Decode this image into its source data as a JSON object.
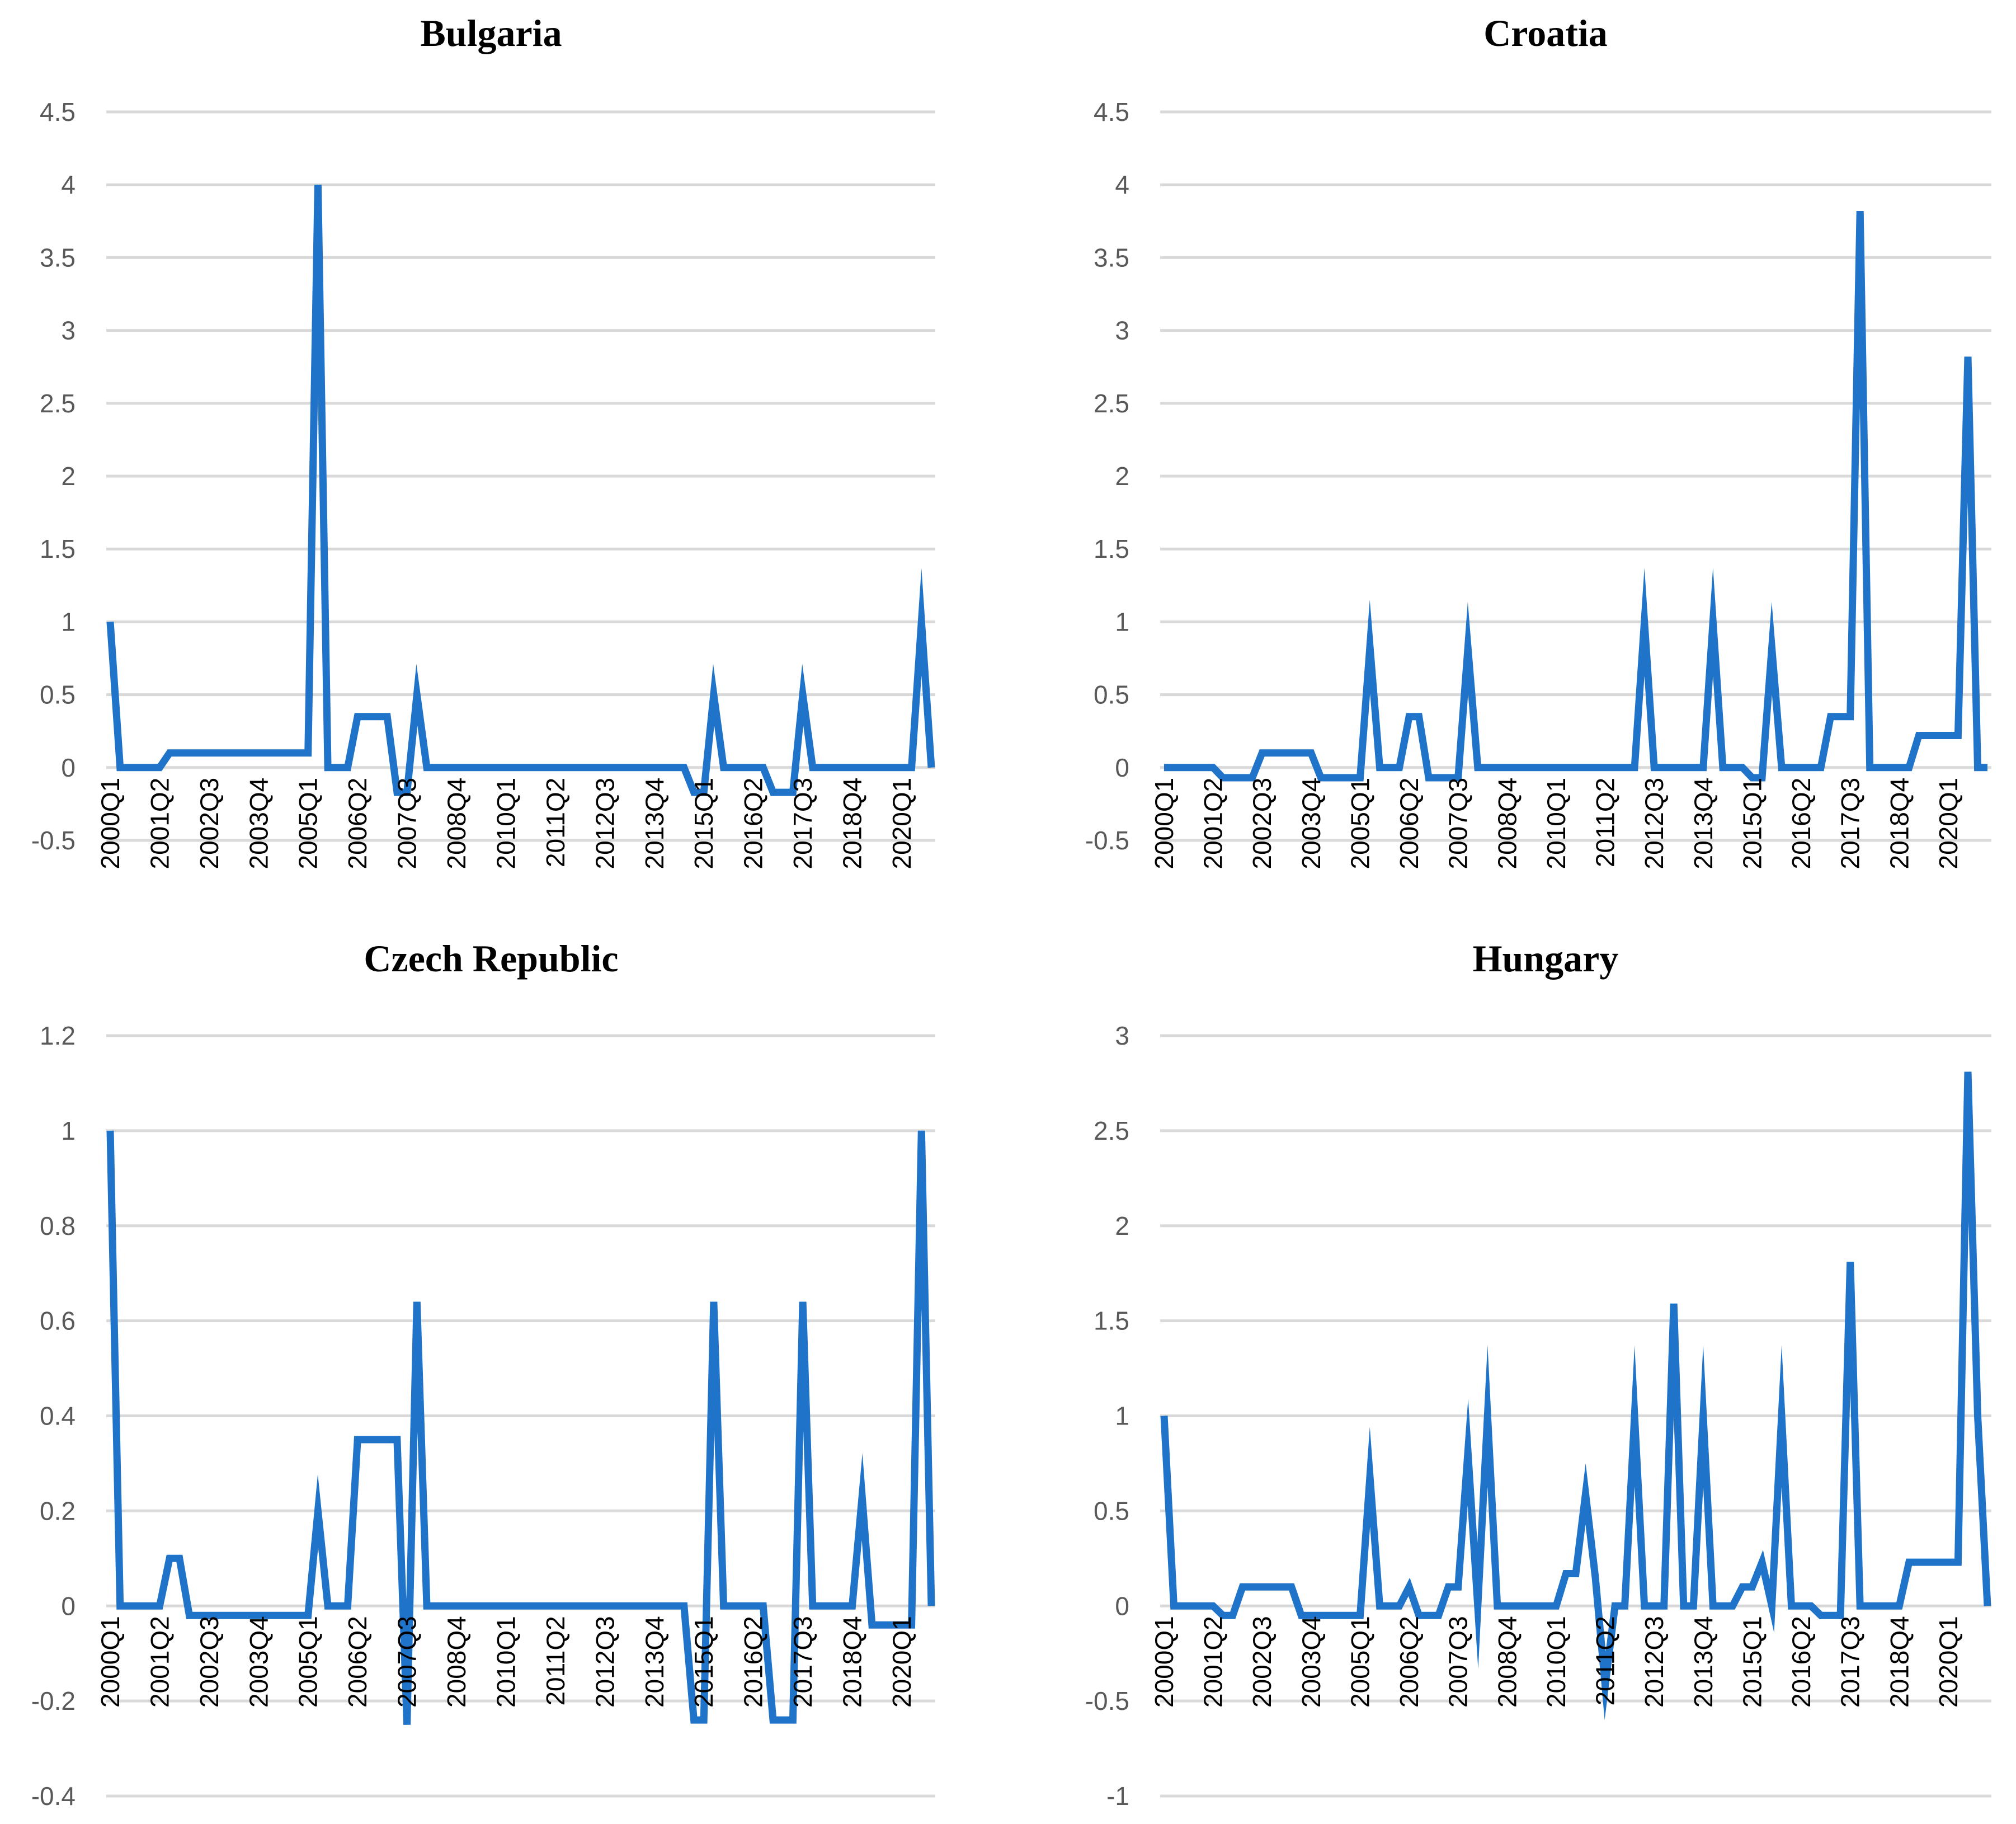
{
  "chart_data": [
    {
      "type": "line",
      "title": "Bulgaria",
      "ylim": [
        -0.5,
        4.5
      ],
      "yticks": [
        "4.5",
        "4",
        "3.5",
        "3",
        "2.5",
        "2",
        "1.5",
        "1",
        "0.5",
        "0",
        "-0.5"
      ],
      "ytick_values": [
        4.5,
        4,
        3.5,
        3,
        2.5,
        2,
        1.5,
        1,
        0.5,
        0,
        -0.5
      ],
      "xticks": [
        "2000Q1",
        "2001Q2",
        "2002Q3",
        "2003Q4",
        "2005Q1",
        "2006Q2",
        "2007Q3",
        "2008Q4",
        "2010Q1",
        "2011Q2",
        "2012Q3",
        "2013Q4",
        "2015Q1",
        "2016Q2",
        "2017Q3",
        "2018Q4",
        "2020Q1"
      ],
      "x_start": "2000Q1",
      "n_quarters": 84,
      "grid": true,
      "series": [
        {
          "name": "Bulgaria",
          "color": "#1f73c8",
          "values": [
            1,
            0,
            0,
            0,
            0,
            0,
            0.1,
            0.1,
            0.1,
            0.1,
            0.1,
            0.1,
            0.1,
            0.1,
            0.1,
            0.1,
            0.1,
            0.1,
            0.1,
            0.1,
            0.1,
            4,
            0,
            0,
            0,
            0.35,
            0.35,
            0.35,
            0.35,
            -0.17,
            -0.17,
            0.5,
            0,
            0,
            0,
            0,
            0,
            0,
            0,
            0,
            0,
            0,
            0,
            0,
            0,
            0,
            0,
            0,
            0,
            0,
            0,
            0,
            0,
            0,
            0,
            0,
            0,
            0,
            0,
            -0.17,
            -0.17,
            0.5,
            0,
            0,
            0,
            0,
            0,
            -0.17,
            -0.17,
            -0.17,
            0.5,
            0,
            0,
            0,
            0,
            0,
            0,
            0,
            0,
            0,
            0,
            0,
            1,
            0
          ]
        }
      ]
    },
    {
      "type": "line",
      "title": "Croatia",
      "ylim": [
        -0.5,
        4.5
      ],
      "yticks": [
        "4.5",
        "4",
        "3.5",
        "3",
        "2.5",
        "2",
        "1.5",
        "1",
        "0.5",
        "0",
        "-0.5"
      ],
      "ytick_values": [
        4.5,
        4,
        3.5,
        3,
        2.5,
        2,
        1.5,
        1,
        0.5,
        0,
        -0.5
      ],
      "xticks": [
        "2000Q1",
        "2001Q2",
        "2002Q3",
        "2003Q4",
        "2005Q1",
        "2006Q2",
        "2007Q3",
        "2008Q4",
        "2010Q1",
        "2011Q2",
        "2012Q3",
        "2013Q4",
        "2015Q1",
        "2016Q2",
        "2017Q3",
        "2018Q4",
        "2020Q1"
      ],
      "x_start": "2000Q1",
      "n_quarters": 85,
      "grid": true,
      "series": [
        {
          "name": "Croatia",
          "color": "#1f73c8",
          "values": [
            0,
            0,
            0,
            0,
            0,
            0,
            -0.07,
            -0.07,
            -0.07,
            -0.07,
            0.1,
            0.1,
            0.1,
            0.1,
            0.1,
            0.1,
            -0.07,
            -0.07,
            -0.07,
            -0.07,
            -0.07,
            0.83,
            0,
            0,
            0,
            0.35,
            0.35,
            -0.07,
            -0.07,
            -0.07,
            -0.07,
            0.82,
            0,
            0,
            0,
            0,
            0,
            0,
            0,
            0,
            0,
            0,
            0,
            0,
            0,
            0,
            0,
            0,
            0,
            1,
            0,
            0,
            0,
            0,
            0,
            0,
            1,
            0,
            0,
            0,
            -0.07,
            -0.07,
            0.82,
            0,
            0,
            0,
            0,
            0,
            0.35,
            0.35,
            0.35,
            3.82,
            0,
            0,
            0,
            0,
            0,
            0.22,
            0.22,
            0.22,
            0.22,
            0.22,
            2.82,
            0,
            0
          ]
        }
      ]
    },
    {
      "type": "line",
      "title": "Czech Republic",
      "ylim": [
        -0.4,
        1.2
      ],
      "yticks": [
        "1.2",
        "1",
        "0.8",
        "0.6",
        "0.4",
        "0.2",
        "0",
        "-0.2",
        "-0.4"
      ],
      "ytick_values": [
        1.2,
        1,
        0.8,
        0.6,
        0.4,
        0.2,
        0,
        -0.2,
        -0.4
      ],
      "xticks": [
        "2000Q1",
        "2001Q2",
        "2002Q3",
        "2003Q4",
        "2005Q1",
        "2006Q2",
        "2007Q3",
        "2008Q4",
        "2010Q1",
        "2011Q2",
        "2012Q3",
        "2013Q4",
        "2015Q1",
        "2016Q2",
        "2017Q3",
        "2018Q4",
        "2020Q1"
      ],
      "x_start": "2000Q1",
      "n_quarters": 84,
      "grid": true,
      "series": [
        {
          "name": "Czech Republic",
          "color": "#1f73c8",
          "values": [
            1,
            0,
            0,
            0,
            0,
            0,
            0.1,
            0.1,
            -0.02,
            -0.02,
            -0.02,
            -0.02,
            -0.02,
            -0.02,
            -0.02,
            -0.02,
            -0.02,
            -0.02,
            -0.02,
            -0.02,
            -0.02,
            0.2,
            0,
            0,
            0,
            0.35,
            0.35,
            0.35,
            0.35,
            0.35,
            -0.25,
            0.64,
            0,
            0,
            0,
            0,
            0,
            0,
            0,
            0,
            0,
            0,
            0,
            0,
            0,
            0,
            0,
            0,
            0,
            0,
            0,
            0,
            0,
            0,
            0,
            0,
            0,
            0,
            0,
            -0.24,
            -0.24,
            0.64,
            0,
            0,
            0,
            0,
            0,
            -0.24,
            -0.24,
            -0.24,
            0.64,
            0,
            0,
            0,
            0,
            0,
            0.23,
            -0.04,
            -0.04,
            -0.04,
            -0.04,
            -0.04,
            1,
            0
          ]
        }
      ]
    },
    {
      "type": "line",
      "title": "Hungary",
      "ylim": [
        -1,
        3
      ],
      "yticks": [
        "3",
        "2.5",
        "2",
        "1.5",
        "1",
        "0.5",
        "0",
        "-0.5",
        "-1"
      ],
      "ytick_values": [
        3,
        2.5,
        2,
        1.5,
        1,
        0.5,
        0,
        -0.5,
        -1
      ],
      "xticks": [
        "2000Q1",
        "2001Q2",
        "2002Q3",
        "2003Q4",
        "2005Q1",
        "2006Q2",
        "2007Q3",
        "2008Q4",
        "2010Q1",
        "2011Q2",
        "2012Q3",
        "2013Q4",
        "2015Q1",
        "2016Q2",
        "2017Q3",
        "2018Q4",
        "2020Q1"
      ],
      "x_start": "2000Q1",
      "n_quarters": 85,
      "grid": true,
      "series": [
        {
          "name": "Hungary",
          "color": "#1f73c8",
          "values": [
            1,
            0,
            0,
            0,
            0,
            0,
            -0.05,
            -0.05,
            0.1,
            0.1,
            0.1,
            0.1,
            0.1,
            0.1,
            -0.05,
            -0.05,
            -0.05,
            -0.05,
            -0.05,
            -0.05,
            -0.05,
            0.68,
            0,
            0,
            0,
            0.1,
            -0.05,
            -0.05,
            -0.05,
            0.1,
            0.1,
            0.81,
            0,
            1,
            0,
            0,
            0,
            0,
            0,
            0,
            0,
            0.17,
            0.17,
            0.59,
            0.15,
            -0.42,
            0,
            0,
            1,
            0,
            0,
            0,
            1.59,
            0,
            0,
            1,
            0,
            0,
            0,
            0.1,
            0.1,
            0.23,
            0,
            1,
            0,
            0,
            0,
            -0.05,
            -0.05,
            -0.05,
            1.81,
            0,
            0,
            0,
            0,
            0,
            0.23,
            0.23,
            0.23,
            0.23,
            0.23,
            0.23,
            2.81,
            1,
            0
          ]
        }
      ]
    }
  ]
}
